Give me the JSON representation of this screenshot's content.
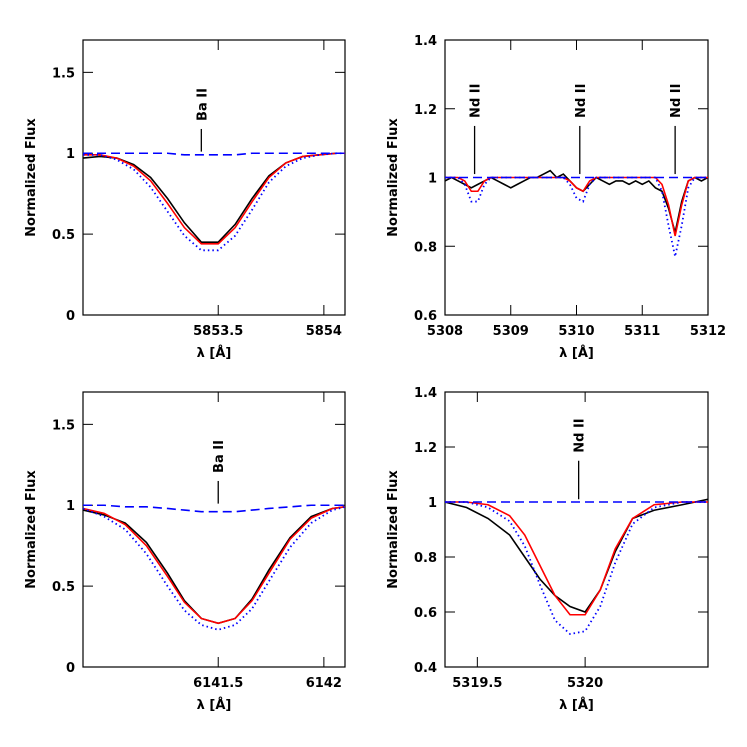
{
  "chart_data": [
    {
      "type": "line",
      "ylabel": "Normalized Flux",
      "xlabel": "λ [Å]",
      "xlim": [
        5852.86,
        5854.1
      ],
      "xticks": [
        5853.5,
        5854
      ],
      "ylim": [
        0,
        1.7
      ],
      "yticks": [
        0,
        0.5,
        1,
        1.5
      ],
      "annotations": [
        {
          "text": "Ba II",
          "x": 5853.42
        }
      ],
      "x": [
        5852.86,
        5852.94,
        5853.02,
        5853.1,
        5853.18,
        5853.26,
        5853.34,
        5853.42,
        5853.5,
        5853.58,
        5853.66,
        5853.74,
        5853.82,
        5853.9,
        5853.98,
        5854.06,
        5854.1
      ],
      "series": [
        {
          "color": "#000000",
          "dash": "solid",
          "values": [
            0.97,
            0.98,
            0.97,
            0.93,
            0.85,
            0.72,
            0.57,
            0.45,
            0.45,
            0.56,
            0.72,
            0.86,
            0.94,
            0.98,
            0.99,
            1.0,
            1.0
          ]
        },
        {
          "color": "#ff0000",
          "dash": "solid",
          "values": [
            0.99,
            0.99,
            0.97,
            0.92,
            0.83,
            0.69,
            0.54,
            0.44,
            0.44,
            0.54,
            0.7,
            0.85,
            0.94,
            0.98,
            0.99,
            1.0,
            1.0
          ]
        },
        {
          "color": "#0000ff",
          "dash": "dotted",
          "values": [
            0.99,
            0.99,
            0.96,
            0.9,
            0.79,
            0.64,
            0.49,
            0.4,
            0.4,
            0.49,
            0.65,
            0.82,
            0.92,
            0.97,
            0.99,
            1.0,
            1.0
          ]
        },
        {
          "color": "#0000ff",
          "dash": "dashed",
          "values": [
            1.0,
            1.0,
            1.0,
            1.0,
            1.0,
            1.0,
            0.99,
            0.99,
            0.99,
            0.99,
            1.0,
            1.0,
            1.0,
            1.0,
            1.0,
            1.0,
            1.0
          ]
        }
      ]
    },
    {
      "type": "line",
      "ylabel": "Normalized Flux",
      "xlabel": "λ [Å]",
      "xlim": [
        5308,
        5312
      ],
      "xticks": [
        5308,
        5309,
        5310,
        5311,
        5312
      ],
      "ylim": [
        0.6,
        1.4
      ],
      "yticks": [
        0.6,
        0.8,
        1,
        1.2,
        1.4
      ],
      "annotations": [
        {
          "text": "Nd II",
          "x": 5308.45
        },
        {
          "text": "Nd II",
          "x": 5310.05
        },
        {
          "text": "Nd II",
          "x": 5311.5
        }
      ],
      "x": [
        5308.0,
        5308.1,
        5308.2,
        5308.3,
        5308.4,
        5308.5,
        5308.6,
        5308.7,
        5308.8,
        5308.9,
        5309.0,
        5309.1,
        5309.2,
        5309.3,
        5309.4,
        5309.5,
        5309.6,
        5309.7,
        5309.8,
        5309.9,
        5310.0,
        5310.1,
        5310.2,
        5310.3,
        5310.4,
        5310.5,
        5310.6,
        5310.7,
        5310.8,
        5310.9,
        5311.0,
        5311.1,
        5311.2,
        5311.3,
        5311.4,
        5311.5,
        5311.6,
        5311.7,
        5311.8,
        5311.9,
        5312.0
      ],
      "series": [
        {
          "color": "#000000",
          "dash": "solid",
          "values": [
            0.99,
            1.0,
            0.99,
            0.98,
            0.97,
            0.98,
            0.99,
            1.0,
            0.99,
            0.98,
            0.97,
            0.98,
            0.99,
            1.0,
            1.0,
            1.01,
            1.02,
            1.0,
            1.01,
            0.99,
            0.97,
            0.96,
            0.98,
            1.0,
            0.99,
            0.98,
            0.99,
            0.99,
            0.98,
            0.99,
            0.98,
            0.99,
            0.97,
            0.96,
            0.91,
            0.84,
            0.93,
            0.99,
            1.0,
            0.99,
            1.0
          ]
        },
        {
          "color": "#ff0000",
          "dash": "solid",
          "values": [
            1.0,
            1.0,
            1.0,
            0.99,
            0.96,
            0.96,
            0.99,
            1.0,
            1.0,
            1.0,
            1.0,
            1.0,
            1.0,
            1.0,
            1.0,
            1.0,
            1.0,
            1.0,
            1.0,
            0.99,
            0.97,
            0.96,
            0.99,
            1.0,
            1.0,
            1.0,
            1.0,
            1.0,
            1.0,
            1.0,
            1.0,
            1.0,
            1.0,
            0.98,
            0.92,
            0.83,
            0.92,
            0.99,
            1.0,
            1.0,
            1.0
          ]
        },
        {
          "color": "#0000ff",
          "dash": "dotted",
          "values": [
            1.0,
            1.0,
            1.0,
            0.98,
            0.93,
            0.93,
            0.98,
            1.0,
            1.0,
            1.0,
            1.0,
            1.0,
            1.0,
            1.0,
            1.0,
            1.0,
            1.0,
            1.0,
            1.0,
            0.98,
            0.94,
            0.93,
            0.98,
            1.0,
            1.0,
            1.0,
            1.0,
            1.0,
            1.0,
            1.0,
            1.0,
            1.0,
            1.0,
            0.96,
            0.86,
            0.77,
            0.86,
            0.97,
            1.0,
            1.0,
            1.0
          ]
        },
        {
          "color": "#0000ff",
          "dash": "dashed",
          "values": [
            1.0,
            1.0,
            1.0,
            1.0,
            1.0,
            1.0,
            1.0,
            1.0,
            1.0,
            1.0,
            1.0,
            1.0,
            1.0,
            1.0,
            1.0,
            1.0,
            1.0,
            1.0,
            1.0,
            1.0,
            1.0,
            1.0,
            1.0,
            1.0,
            1.0,
            1.0,
            1.0,
            1.0,
            1.0,
            1.0,
            1.0,
            1.0,
            1.0,
            1.0,
            1.0,
            1.0,
            1.0,
            1.0,
            1.0,
            1.0,
            1.0
          ]
        }
      ]
    },
    {
      "type": "line",
      "ylabel": "Normalized Flux",
      "xlabel": "λ [Å]",
      "xlim": [
        6140.86,
        6142.1
      ],
      "xticks": [
        6141.5,
        6142
      ],
      "ylim": [
        0,
        1.7
      ],
      "yticks": [
        0,
        0.5,
        1,
        1.5
      ],
      "annotations": [
        {
          "text": "Ba II",
          "x": 6141.5
        }
      ],
      "x": [
        6140.86,
        6140.96,
        6141.06,
        6141.16,
        6141.26,
        6141.34,
        6141.42,
        6141.5,
        6141.58,
        6141.66,
        6141.74,
        6141.84,
        6141.94,
        6142.04,
        6142.1
      ],
      "series": [
        {
          "color": "#000000",
          "dash": "solid",
          "values": [
            0.97,
            0.94,
            0.89,
            0.77,
            0.58,
            0.41,
            0.3,
            0.27,
            0.3,
            0.42,
            0.6,
            0.8,
            0.93,
            0.98,
            0.99
          ]
        },
        {
          "color": "#ff0000",
          "dash": "solid",
          "values": [
            0.98,
            0.95,
            0.88,
            0.75,
            0.56,
            0.4,
            0.3,
            0.27,
            0.3,
            0.41,
            0.58,
            0.79,
            0.92,
            0.98,
            0.99
          ]
        },
        {
          "color": "#0000ff",
          "dash": "dotted",
          "values": [
            0.98,
            0.93,
            0.85,
            0.7,
            0.5,
            0.35,
            0.26,
            0.23,
            0.26,
            0.36,
            0.53,
            0.74,
            0.89,
            0.97,
            0.99
          ]
        },
        {
          "color": "#0000ff",
          "dash": "dashed",
          "values": [
            1.0,
            1.0,
            0.99,
            0.99,
            0.98,
            0.97,
            0.96,
            0.96,
            0.96,
            0.97,
            0.98,
            0.99,
            1.0,
            1.0,
            1.0
          ]
        }
      ]
    },
    {
      "type": "line",
      "ylabel": "Normalized Flux",
      "xlabel": "λ [Å]",
      "xlim": [
        5319.35,
        5320.57
      ],
      "xticks": [
        5319.5,
        5320
      ],
      "ylim": [
        0.4,
        1.4
      ],
      "yticks": [
        0.4,
        0.6,
        0.8,
        1,
        1.2,
        1.4
      ],
      "annotations": [
        {
          "text": "Nd II",
          "x": 5319.97
        }
      ],
      "x": [
        5319.35,
        5319.45,
        5319.55,
        5319.65,
        5319.72,
        5319.79,
        5319.86,
        5319.93,
        5320.0,
        5320.07,
        5320.14,
        5320.22,
        5320.32,
        5320.45,
        5320.57
      ],
      "series": [
        {
          "color": "#000000",
          "dash": "solid",
          "values": [
            1.0,
            0.98,
            0.94,
            0.88,
            0.8,
            0.72,
            0.66,
            0.62,
            0.6,
            0.68,
            0.82,
            0.94,
            0.97,
            0.99,
            1.01
          ]
        },
        {
          "color": "#ff0000",
          "dash": "solid",
          "values": [
            1.0,
            1.0,
            0.99,
            0.95,
            0.88,
            0.77,
            0.66,
            0.59,
            0.59,
            0.68,
            0.83,
            0.94,
            0.99,
            1.0,
            1.0
          ]
        },
        {
          "color": "#0000ff",
          "dash": "dotted",
          "values": [
            1.0,
            1.0,
            0.98,
            0.93,
            0.84,
            0.7,
            0.57,
            0.52,
            0.53,
            0.62,
            0.78,
            0.92,
            0.98,
            1.0,
            1.0
          ]
        },
        {
          "color": "#0000ff",
          "dash": "dashed",
          "values": [
            1.0,
            1.0,
            1.0,
            1.0,
            1.0,
            1.0,
            1.0,
            1.0,
            1.0,
            1.0,
            1.0,
            1.0,
            1.0,
            1.0,
            1.0
          ]
        }
      ]
    }
  ]
}
